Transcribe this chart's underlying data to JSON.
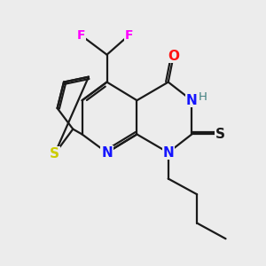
{
  "background_color": "#ececec",
  "bond_color": "#1a1a1a",
  "bond_width": 1.6,
  "atom_colors": {
    "N": "#1414ff",
    "O": "#ff1414",
    "S_thione": "#1a1a1a",
    "S_thiophene": "#cccc00",
    "F": "#ff00ff",
    "H": "#408080",
    "C": "#1a1a1a"
  },
  "figsize": [
    3.0,
    3.0
  ],
  "dpi": 100
}
